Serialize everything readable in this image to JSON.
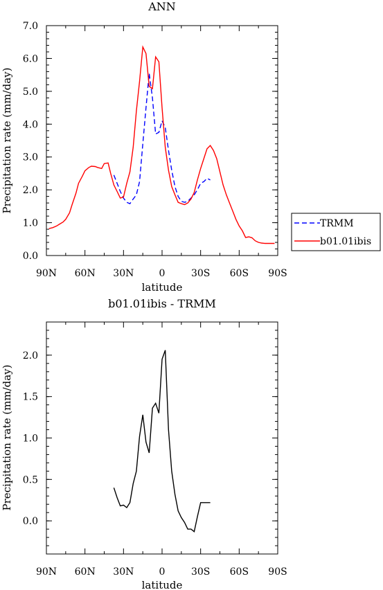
{
  "chart_data": [
    {
      "type": "line",
      "title": "ANN",
      "xlabel": "latitude",
      "ylabel": "Precipitation rate (mm/day)",
      "xlim": [
        90,
        -90
      ],
      "ylim": [
        0,
        7
      ],
      "x_ticks": [
        90,
        60,
        30,
        0,
        -30,
        -60,
        -90
      ],
      "x_tick_labels": [
        "90N",
        "60N",
        "30N",
        "0",
        "30S",
        "60S",
        "90S"
      ],
      "y_ticks": [
        0,
        1,
        2,
        3,
        4,
        5,
        6,
        7
      ],
      "y_tick_labels": [
        "0.0",
        "1.0",
        "2.0",
        "3.0",
        "4.0",
        "5.0",
        "6.0",
        "7.0"
      ],
      "legend_position": "right",
      "series": [
        {
          "name": "TRMM",
          "color": "#0000ff",
          "dash": "dashed",
          "x": [
            37.5,
            35,
            32.5,
            30,
            27.5,
            25,
            22.5,
            20,
            17.5,
            15,
            12.5,
            10,
            7.5,
            5,
            2.5,
            0,
            -2.5,
            -5,
            -7.5,
            -10,
            -12.5,
            -15,
            -17.5,
            -20,
            -22.5,
            -25,
            -27.5,
            -30,
            -32.5,
            -35,
            -37.5
          ],
          "y": [
            2.45,
            2.2,
            1.95,
            1.75,
            1.62,
            1.58,
            1.72,
            1.85,
            2.25,
            3.4,
            4.5,
            5.55,
            4.8,
            3.7,
            3.75,
            4.1,
            3.9,
            3.2,
            2.6,
            2.1,
            1.8,
            1.65,
            1.62,
            1.65,
            1.75,
            1.85,
            2.0,
            2.2,
            2.25,
            2.35,
            2.3
          ]
        },
        {
          "name": "b01.01ibis",
          "color": "#ff0000",
          "dash": "solid",
          "x": [
            88,
            85,
            82,
            80,
            77,
            75,
            72,
            70,
            67,
            65,
            62,
            60,
            57,
            55,
            52,
            50,
            47,
            45,
            42,
            40,
            37.5,
            35,
            32.5,
            30,
            27.5,
            25,
            22.5,
            20,
            17.5,
            15,
            12.5,
            10,
            7.5,
            5,
            2.5,
            0,
            -2.5,
            -5,
            -7.5,
            -10,
            -12.5,
            -15,
            -17.5,
            -20,
            -22.5,
            -25,
            -27.5,
            -30,
            -32.5,
            -35,
            -37.5,
            -40,
            -42.5,
            -45,
            -47.5,
            -50,
            -52.5,
            -55,
            -57.5,
            -60,
            -62.5,
            -65,
            -67.5,
            -70,
            -72.5,
            -75,
            -77.5,
            -80,
            -82.5,
            -85,
            -87.5
          ],
          "y": [
            0.82,
            0.85,
            0.9,
            0.95,
            1.02,
            1.1,
            1.3,
            1.55,
            1.9,
            2.2,
            2.42,
            2.58,
            2.68,
            2.72,
            2.71,
            2.68,
            2.65,
            2.8,
            2.82,
            2.5,
            2.15,
            1.95,
            1.75,
            1.78,
            2.2,
            2.55,
            3.3,
            4.4,
            5.3,
            6.35,
            6.15,
            5.15,
            5.08,
            6.05,
            5.9,
            4.5,
            3.3,
            2.6,
            2.1,
            1.85,
            1.62,
            1.58,
            1.55,
            1.6,
            1.72,
            1.92,
            2.3,
            2.65,
            2.95,
            3.25,
            3.35,
            3.2,
            2.95,
            2.55,
            2.15,
            1.85,
            1.6,
            1.35,
            1.1,
            0.9,
            0.75,
            0.55,
            0.57,
            0.54,
            0.45,
            0.4,
            0.38,
            0.37,
            0.37,
            0.37,
            0.37
          ]
        }
      ]
    },
    {
      "type": "line",
      "title": "b01.01ibis - TRMM",
      "xlabel": "latitude",
      "ylabel": "Precipitation rate (mm/day)",
      "xlim": [
        90,
        -90
      ],
      "ylim": [
        -0.4,
        2.4
      ],
      "x_ticks": [
        90,
        60,
        30,
        0,
        -30,
        -60,
        -90
      ],
      "x_tick_labels": [
        "90N",
        "60N",
        "30N",
        "0",
        "30S",
        "60S",
        "90S"
      ],
      "y_ticks": [
        0.0,
        0.5,
        1.0,
        1.5,
        2.0
      ],
      "y_tick_labels": [
        "0.0",
        "0.5",
        "1.0",
        "1.5",
        "2.0"
      ],
      "series": [
        {
          "color": "#000000",
          "dash": "solid",
          "x": [
            37.5,
            35,
            32.5,
            30,
            27.5,
            25,
            22.5,
            20,
            17.5,
            15,
            12.5,
            10,
            7.5,
            5,
            2.5,
            0,
            -2.5,
            -5,
            -7.5,
            -10,
            -12.5,
            -15,
            -17.5,
            -20,
            -22.5,
            -25,
            -27.5,
            -30,
            -32.5,
            -35,
            -37.5
          ],
          "y": [
            0.4,
            0.28,
            0.18,
            0.19,
            0.16,
            0.22,
            0.45,
            0.6,
            1.02,
            1.28,
            0.95,
            0.82,
            1.36,
            1.42,
            1.3,
            1.95,
            2.06,
            1.1,
            0.6,
            0.32,
            0.12,
            0.04,
            -0.02,
            -0.1,
            -0.1,
            -0.13,
            0.05,
            0.22,
            0.22,
            0.22,
            0.22
          ]
        }
      ]
    }
  ]
}
